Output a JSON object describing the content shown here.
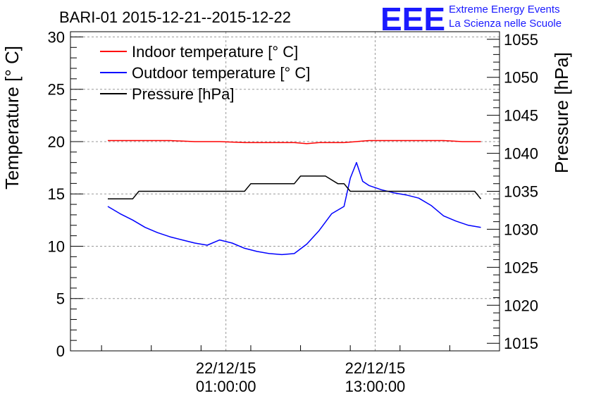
{
  "chart_data": {
    "type": "line",
    "title": "BARI-01 2015-12-21--2015-12-22",
    "logo": {
      "letters": "EEE",
      "line1": "Extreme Energy Events",
      "line2": "La Scienza nelle Scuole"
    },
    "ylabel_left": "Temperature [° C]",
    "ylabel_right": "Pressure [hPa]",
    "ylim_left": [
      0,
      30.5
    ],
    "ylim_right": [
      1014,
      1056
    ],
    "xlim": [
      -11.5,
      23.0
    ],
    "y_left_ticks": [
      "0",
      "5",
      "10",
      "15",
      "20",
      "25",
      "30"
    ],
    "y_right_ticks": [
      "1015",
      "1020",
      "1025",
      "1030",
      "1035",
      "1040",
      "1045",
      "1050",
      "1055"
    ],
    "x_ticks": [
      {
        "line1": "22/12/15",
        "line2": "01:00:00"
      },
      {
        "line1": "22/12/15",
        "line2": "13:00:00"
      }
    ],
    "grid": true,
    "legend_placement": "top-left",
    "series": [
      {
        "name": "Indoor temperature [° C]",
        "color": "#ff0000",
        "axis": "left",
        "x": [
          -8.5,
          -5.5,
          -3.5,
          -1.5,
          0.5,
          2.5,
          4.5,
          6.5,
          7.5,
          8.5,
          10.5,
          12.5,
          14.5,
          16.5,
          18.5,
          20.0,
          21.5
        ],
        "values": [
          20.1,
          20.1,
          20.1,
          20.0,
          20.0,
          19.9,
          19.9,
          19.9,
          19.8,
          19.9,
          19.9,
          20.1,
          20.1,
          20.1,
          20.1,
          20.0,
          20.0
        ]
      },
      {
        "name": "Outdoor temperature [° C]",
        "color": "#0000ff",
        "axis": "left",
        "x": [
          -8.5,
          -7.5,
          -6.5,
          -5.5,
          -4.5,
          -3.5,
          -2.5,
          -1.5,
          -0.5,
          0.5,
          1.5,
          2.5,
          3.5,
          4.5,
          5.5,
          6.5,
          7.5,
          8.5,
          9.5,
          10.5,
          11.0,
          11.5,
          12.0,
          12.5,
          13.5,
          14.5,
          15.5,
          16.5,
          17.5,
          18.5,
          19.5,
          20.5,
          21.5
        ],
        "values": [
          13.8,
          13.1,
          12.5,
          11.8,
          11.3,
          10.9,
          10.6,
          10.3,
          10.1,
          10.6,
          10.3,
          9.8,
          9.5,
          9.3,
          9.2,
          9.3,
          10.2,
          11.5,
          13.1,
          13.8,
          16.5,
          18.0,
          16.2,
          15.8,
          15.4,
          15.1,
          14.9,
          14.6,
          13.9,
          12.9,
          12.4,
          12.0,
          11.8
        ]
      },
      {
        "name": "Pressure [hPa]",
        "color": "#000000",
        "axis": "right",
        "x": [
          -8.5,
          -6.5,
          -6.0,
          2.5,
          3.0,
          6.5,
          7.0,
          8.5,
          9.0,
          10.0,
          10.5,
          11.0,
          11.5,
          21.0,
          21.5
        ],
        "values": [
          1034,
          1034,
          1035,
          1035,
          1036,
          1036,
          1037,
          1037,
          1037,
          1036,
          1036,
          1035,
          1035,
          1035,
          1034
        ]
      }
    ]
  }
}
